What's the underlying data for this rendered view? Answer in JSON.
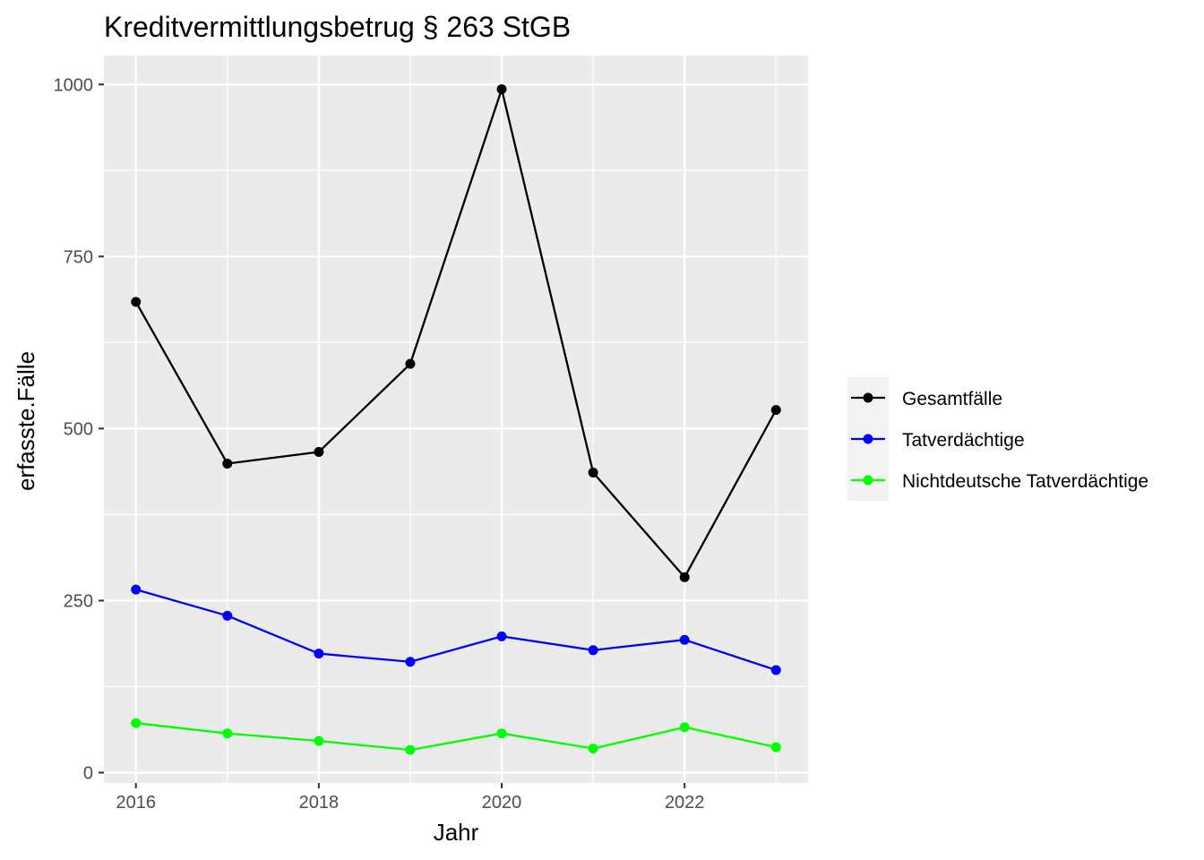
{
  "chart_data": {
    "type": "line",
    "title": "Kreditvermittlungsbetrug § 263 StGB",
    "xlabel": "Jahr",
    "ylabel": "erfasste.Fälle",
    "x": [
      2016,
      2017,
      2018,
      2019,
      2020,
      2021,
      2022,
      2023
    ],
    "xlim": [
      2015.65,
      2023.35
    ],
    "ylim": [
      -15,
      1042
    ],
    "x_ticks": [
      2016,
      2018,
      2020,
      2022
    ],
    "y_ticks": [
      0,
      250,
      500,
      750,
      1000
    ],
    "y_minor_ticks": [
      125,
      375,
      625,
      875
    ],
    "x_minor_ticks": [
      2017,
      2019,
      2021,
      2023
    ],
    "grid": true,
    "legend_position": "right",
    "series": [
      {
        "name": "Gesamtfälle",
        "color": "#000000",
        "values": [
          684,
          449,
          466,
          594,
          993,
          436,
          284,
          527
        ]
      },
      {
        "name": "Tatverdächtige",
        "color": "#0000ff",
        "values": [
          266,
          228,
          173,
          161,
          198,
          178,
          193,
          149
        ]
      },
      {
        "name": "Nichtdeutsche Tatverdächtige",
        "color": "#00ff00",
        "values": [
          72,
          57,
          46,
          33,
          57,
          35,
          66,
          37
        ]
      }
    ]
  }
}
